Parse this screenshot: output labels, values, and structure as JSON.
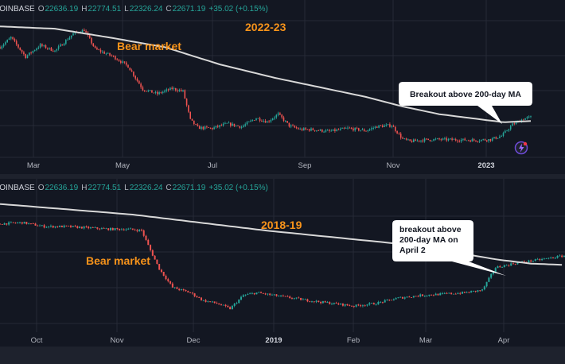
{
  "ticker": {
    "exchange": "COINBASE",
    "open_label": "O",
    "open": "22636.19",
    "high_label": "H",
    "high": "22774.51",
    "low_label": "L",
    "low": "22326.24",
    "close_label": "C",
    "close": "22671.19",
    "change": "+35.02 (+0.15%)"
  },
  "colors": {
    "background": "#131722",
    "up": "#26a69a",
    "down": "#ef5350",
    "moving_average": "#d8d8d8",
    "annotation": "#f7931a"
  },
  "icons": {
    "flash": "flash-icon"
  },
  "chart_data": [
    {
      "type": "candlestick",
      "title": "2022-23",
      "annotation_bear": "Bear market",
      "callout": [
        "Breakout above 200-day MA"
      ],
      "x_ticks": [
        {
          "label": "Mar",
          "bold": false
        },
        {
          "label": "May",
          "bold": false
        },
        {
          "label": "Jul",
          "bold": false
        },
        {
          "label": "Sep",
          "bold": false
        },
        {
          "label": "Nov",
          "bold": false
        },
        {
          "label": "2023",
          "bold": true
        }
      ],
      "grid": true,
      "series": [
        {
          "name": "price",
          "anchors": [
            [
              0,
              41000
            ],
            [
              6,
              43500
            ],
            [
              14,
              38500
            ],
            [
              22,
              41500
            ],
            [
              30,
              40000
            ],
            [
              40,
              44500
            ],
            [
              46,
              45500
            ],
            [
              52,
              40500
            ],
            [
              62,
              38500
            ],
            [
              70,
              36000
            ],
            [
              78,
              30000
            ],
            [
              86,
              28800
            ],
            [
              94,
              30200
            ],
            [
              100,
              29500
            ],
            [
              104,
              22000
            ],
            [
              108,
              20000
            ],
            [
              116,
              19800
            ],
            [
              124,
              21000
            ],
            [
              132,
              20200
            ],
            [
              140,
              22500
            ],
            [
              146,
              21500
            ],
            [
              152,
              23500
            ],
            [
              158,
              20500
            ],
            [
              164,
              19500
            ],
            [
              170,
              19500
            ],
            [
              180,
              19000
            ],
            [
              190,
              19800
            ],
            [
              200,
              19200
            ],
            [
              206,
              20300
            ],
            [
              214,
              20600
            ],
            [
              220,
              17000
            ],
            [
              224,
              16400
            ],
            [
              232,
              16800
            ],
            [
              240,
              16900
            ],
            [
              250,
              16800
            ],
            [
              260,
              16700
            ],
            [
              268,
              16900
            ],
            [
              274,
              17800
            ],
            [
              280,
              20800
            ],
            [
              286,
              22300
            ],
            [
              290,
              22700
            ]
          ]
        },
        {
          "name": "200-day MA",
          "anchors": [
            [
              0,
              46400
            ],
            [
              30,
              45800
            ],
            [
              60,
              43500
            ],
            [
              90,
              41000
            ],
            [
              120,
              36500
            ],
            [
              150,
              33000
            ],
            [
              180,
              30000
            ],
            [
              200,
              28000
            ],
            [
              220,
              25500
            ],
            [
              240,
              23500
            ],
            [
              260,
              22300
            ],
            [
              275,
              21400
            ],
            [
              290,
              21700
            ]
          ]
        }
      ]
    },
    {
      "type": "candlestick",
      "title": "2018-19",
      "annotation_bear": "Bear market",
      "callout": [
        "breakout above",
        "200-day MA on",
        "April 2"
      ],
      "x_ticks": [
        {
          "label": "Oct",
          "bold": false
        },
        {
          "label": "Nov",
          "bold": false
        },
        {
          "label": "Dec",
          "bold": false
        },
        {
          "label": "2019",
          "bold": true
        },
        {
          "label": "Feb",
          "bold": false
        },
        {
          "label": "Mar",
          "bold": false
        },
        {
          "label": "Apr",
          "bold": false
        }
      ],
      "grid": true,
      "series": [
        {
          "name": "price",
          "anchors": [
            [
              0,
              6600
            ],
            [
              10,
              6650
            ],
            [
              20,
              6500
            ],
            [
              30,
              6500
            ],
            [
              40,
              6450
            ],
            [
              50,
              6400
            ],
            [
              58,
              6400
            ],
            [
              64,
              6350
            ],
            [
              68,
              5600
            ],
            [
              72,
              4900
            ],
            [
              78,
              4200
            ],
            [
              86,
              4000
            ],
            [
              92,
              3700
            ],
            [
              98,
              3600
            ],
            [
              104,
              3400
            ],
            [
              110,
              3900
            ],
            [
              116,
              4000
            ],
            [
              124,
              3900
            ],
            [
              132,
              3800
            ],
            [
              140,
              3700
            ],
            [
              150,
              3600
            ],
            [
              160,
              3500
            ],
            [
              170,
              3600
            ],
            [
              180,
              3800
            ],
            [
              190,
              3900
            ],
            [
              200,
              3950
            ],
            [
              210,
              4000
            ],
            [
              218,
              4100
            ],
            [
              224,
              4950
            ],
            [
              232,
              5100
            ],
            [
              240,
              5200
            ],
            [
              248,
              5300
            ],
            [
              255,
              5400
            ]
          ]
        },
        {
          "name": "200-day MA",
          "anchors": [
            [
              0,
              7350
            ],
            [
              30,
              7150
            ],
            [
              60,
              6950
            ],
            [
              90,
              6650
            ],
            [
              120,
              6350
            ],
            [
              150,
              6100
            ],
            [
              180,
              5850
            ],
            [
              200,
              5600
            ],
            [
              225,
              5250
            ],
            [
              240,
              5100
            ],
            [
              255,
              5050
            ]
          ]
        }
      ]
    }
  ]
}
